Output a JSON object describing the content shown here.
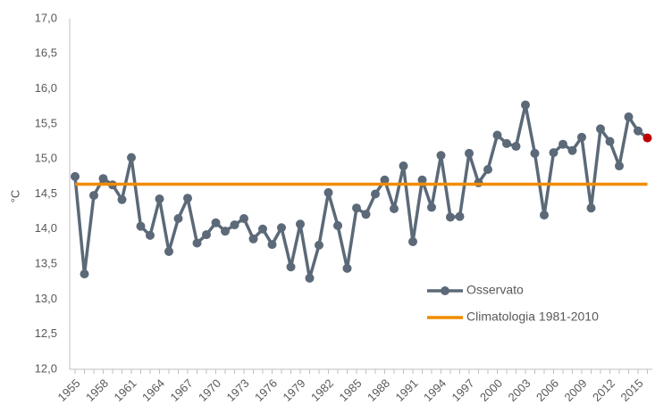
{
  "chart_data": {
    "type": "line",
    "ylabel": "°C",
    "categories": [
      "1955",
      null,
      null,
      "1958",
      null,
      null,
      "1961",
      null,
      null,
      "1964",
      null,
      null,
      "1967",
      null,
      null,
      "1970",
      null,
      null,
      "1973",
      null,
      null,
      "1976",
      null,
      null,
      "1979",
      null,
      null,
      "1982",
      null,
      null,
      "1985",
      null,
      null,
      "1988",
      null,
      null,
      "1991",
      null,
      null,
      "1994",
      null,
      null,
      "1997",
      null,
      null,
      "2000",
      null,
      null,
      "2003",
      null,
      null,
      "2006",
      null,
      null,
      "2009",
      null,
      null,
      "2012",
      null,
      null,
      "2015",
      null
    ],
    "series": [
      {
        "name": "Osservato",
        "color": "#5b6978",
        "markers": true,
        "last_point_color": "#c00000",
        "values": [
          14.75,
          13.36,
          14.48,
          14.72,
          14.63,
          14.42,
          15.02,
          14.04,
          13.91,
          14.43,
          13.68,
          14.15,
          14.44,
          13.8,
          13.92,
          14.09,
          13.97,
          14.06,
          14.15,
          13.86,
          14.0,
          13.78,
          14.02,
          13.46,
          14.07,
          13.3,
          13.77,
          14.52,
          14.05,
          13.44,
          14.3,
          14.21,
          14.5,
          14.7,
          14.29,
          14.9,
          13.82,
          14.7,
          14.31,
          15.05,
          14.17,
          14.18,
          15.08,
          14.66,
          14.85,
          15.34,
          15.22,
          15.18,
          15.77,
          15.08,
          14.2,
          15.09,
          15.21,
          15.12,
          15.31,
          14.3,
          15.43,
          15.25,
          14.9,
          15.6,
          15.4,
          15.3
        ]
      },
      {
        "name": "Climatologia 1981-2010",
        "color": "#f08c00",
        "markers": false,
        "values": [
          14.64,
          14.64,
          14.64,
          14.64,
          14.64,
          14.64,
          14.64,
          14.64,
          14.64,
          14.64,
          14.64,
          14.64,
          14.64,
          14.64,
          14.64,
          14.64,
          14.64,
          14.64,
          14.64,
          14.64,
          14.64,
          14.64,
          14.64,
          14.64,
          14.64,
          14.64,
          14.64,
          14.64,
          14.64,
          14.64,
          14.64,
          14.64,
          14.64,
          14.64,
          14.64,
          14.64,
          14.64,
          14.64,
          14.64,
          14.64,
          14.64,
          14.64,
          14.64,
          14.64,
          14.64,
          14.64,
          14.64,
          14.64,
          14.64,
          14.64,
          14.64,
          14.64,
          14.64,
          14.64,
          14.64,
          14.64,
          14.64,
          14.64,
          14.64,
          14.64,
          14.64,
          14.64
        ]
      }
    ],
    "ylim": [
      12,
      17
    ],
    "yticks": [
      {
        "value": 12,
        "label": "12,0"
      },
      {
        "value": 12.5,
        "label": "12,5"
      },
      {
        "value": 13,
        "label": "13,0"
      },
      {
        "value": 13.5,
        "label": "13,5"
      },
      {
        "value": 14,
        "label": "14,0"
      },
      {
        "value": 14.5,
        "label": "14,5"
      },
      {
        "value": 15,
        "label": "15,0"
      },
      {
        "value": 15.5,
        "label": "15,5"
      },
      {
        "value": 16,
        "label": "16,0"
      },
      {
        "value": 16.5,
        "label": "16,5"
      },
      {
        "value": 17,
        "label": "17,0"
      }
    ],
    "grid": false,
    "legend": "lower right"
  }
}
